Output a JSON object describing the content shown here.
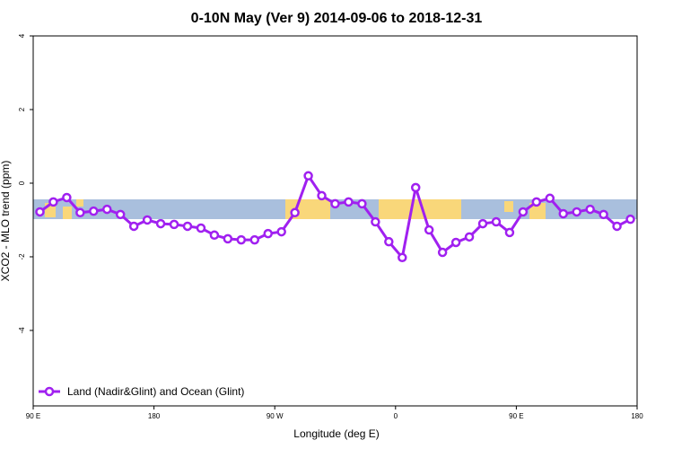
{
  "chart_data": {
    "type": "line",
    "title": "0-10N May (Ver 9)   2014-09-06 to 2018-12-31",
    "x_label": "Longitude (deg E)",
    "y_label": "XCO2 - MLO trend (ppm)",
    "x": [
      95,
      105,
      115,
      125,
      135,
      145,
      155,
      165,
      175,
      185,
      195,
      205,
      215,
      225,
      235,
      245,
      255,
      265,
      275,
      285,
      295,
      305,
      315,
      325,
      335,
      345,
      355,
      365,
      375,
      385,
      395,
      405,
      415,
      425,
      435,
      445,
      455,
      465,
      475,
      485,
      495,
      505,
      515,
      525,
      535
    ],
    "series": [
      {
        "name": "Land (Nadir&Glint) and Ocean (Glint)",
        "color": "#a020f0",
        "values": [
          -0.78,
          -0.51,
          -0.39,
          -0.8,
          -0.76,
          -0.71,
          -0.85,
          -1.17,
          -1.0,
          -1.1,
          -1.12,
          -1.17,
          -1.22,
          -1.41,
          -1.51,
          -1.54,
          -1.54,
          -1.37,
          -1.32,
          -0.8,
          0.2,
          -0.34,
          -0.56,
          -0.51,
          -0.56,
          -1.05,
          -1.59,
          -2.02,
          -0.12,
          -1.27,
          -1.88,
          -1.61,
          -1.46,
          -1.1,
          -1.05,
          -1.34,
          -0.78,
          -0.51,
          -0.41,
          -0.83,
          -0.78,
          -0.71,
          -0.85,
          -1.17,
          -0.98
        ]
      }
    ],
    "xlim": [
      90,
      540
    ],
    "xticks": [
      {
        "value": 90,
        "label": "90 E"
      },
      180,
      {
        "value": 270,
        "label": "90 W"
      },
      {
        "value": 360,
        "label": "0"
      },
      {
        "value": 450,
        "label": "90 E"
      },
      {
        "value": 540,
        "label": "180"
      }
    ],
    "ylim": [
      -6.05,
      4
    ],
    "yticks": [
      4,
      2,
      0,
      -2,
      -4
    ],
    "legend": "bottomleft"
  }
}
